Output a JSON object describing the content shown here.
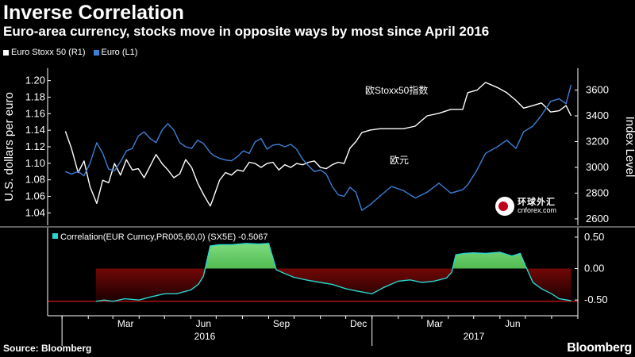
{
  "header": {
    "title": "Inverse Correlation",
    "subtitle": "Euro-area currency, stocks move in opposite ways by most since April 2016"
  },
  "footer": {
    "source": "Source: Bloomberg",
    "brand": "Bloomberg"
  },
  "watermark": {
    "cn": "环球外汇",
    "en": "cnforex.com"
  },
  "colors": {
    "euro": "#3c7fd6",
    "stoxx": "#ffffff",
    "corr_line": "#29d6ce",
    "positive_fill": "#23a623",
    "negative_fill": "#b10c0c",
    "corr_reference": "#d41a1a"
  },
  "chart_data": [
    {
      "type": "line",
      "legend": [
        "Euro Stoxx 50 (R1)",
        "Euro (L1)"
      ],
      "ylabel_left": "U.S. dollars per euro",
      "ylabel_right": "Index Level",
      "ylim_left": [
        1.025,
        1.215
      ],
      "ylim_right": [
        2550,
        3770
      ],
      "yticks_left": [
        "1.20",
        "1.18",
        "1.16",
        "1.14",
        "1.12",
        "1.10",
        "1.08",
        "1.06",
        "1.04"
      ],
      "yticks_right": [
        "3600",
        "3400",
        "3200",
        "3000",
        "2800",
        "2600"
      ],
      "xticks": [
        "Mar",
        "Jun",
        "Sep",
        "Dec",
        "Mar",
        "Jun"
      ],
      "year_labels": [
        "2016",
        "2017"
      ],
      "annotations": [
        "欧Stoxx50指数",
        "欧元"
      ],
      "series": [
        {
          "name": "Euro Stoxx 50 (R1)",
          "axis": "right",
          "x": [
            "2016-01-05",
            "2016-01-12",
            "2016-01-20",
            "2016-01-27",
            "2016-02-03",
            "2016-02-11",
            "2016-02-18",
            "2016-02-25",
            "2016-03-03",
            "2016-03-10",
            "2016-03-17",
            "2016-03-24",
            "2016-03-31",
            "2016-04-07",
            "2016-04-14",
            "2016-04-21",
            "2016-04-28",
            "2016-05-05",
            "2016-05-12",
            "2016-05-19",
            "2016-05-26",
            "2016-06-02",
            "2016-06-09",
            "2016-06-16",
            "2016-06-24",
            "2016-06-27",
            "2016-07-05",
            "2016-07-12",
            "2016-07-19",
            "2016-07-26",
            "2016-08-02",
            "2016-08-09",
            "2016-08-16",
            "2016-08-23",
            "2016-08-30",
            "2016-09-06",
            "2016-09-13",
            "2016-09-20",
            "2016-09-27",
            "2016-10-04",
            "2016-10-11",
            "2016-10-18",
            "2016-10-25",
            "2016-11-01",
            "2016-11-08",
            "2016-11-15",
            "2016-11-22",
            "2016-11-29",
            "2016-12-06",
            "2016-12-13",
            "2016-12-20",
            "2016-12-30",
            "2017-01-10",
            "2017-01-24",
            "2017-02-07",
            "2017-02-21",
            "2017-03-07",
            "2017-03-21",
            "2017-04-04",
            "2017-04-18",
            "2017-04-24",
            "2017-05-05",
            "2017-05-15",
            "2017-05-29",
            "2017-06-09",
            "2017-06-20",
            "2017-06-29",
            "2017-07-10",
            "2017-07-20",
            "2017-07-31",
            "2017-08-10",
            "2017-08-18",
            "2017-08-24"
          ],
          "values": [
            3280,
            3150,
            2960,
            3050,
            2850,
            2720,
            2900,
            2880,
            3030,
            2940,
            3060,
            2980,
            2990,
            2920,
            3010,
            3100,
            3030,
            2980,
            2920,
            2950,
            3060,
            3000,
            2880,
            2790,
            2700,
            2750,
            2900,
            2960,
            2940,
            2980,
            2970,
            3040,
            3030,
            3000,
            3030,
            3040,
            2980,
            3020,
            3000,
            3030,
            3020,
            3040,
            3050,
            3000,
            2990,
            3020,
            3040,
            3030,
            3150,
            3200,
            3270,
            3290,
            3300,
            3300,
            3300,
            3320,
            3400,
            3420,
            3450,
            3450,
            3580,
            3600,
            3660,
            3620,
            3580,
            3520,
            3460,
            3480,
            3500,
            3430,
            3440,
            3480,
            3400
          ]
        },
        {
          "name": "Euro (L1)",
          "axis": "left",
          "x": [
            "2016-01-05",
            "2016-01-12",
            "2016-01-20",
            "2016-01-27",
            "2016-02-03",
            "2016-02-11",
            "2016-02-18",
            "2016-02-25",
            "2016-03-03",
            "2016-03-10",
            "2016-03-17",
            "2016-03-24",
            "2016-03-31",
            "2016-04-07",
            "2016-04-14",
            "2016-04-21",
            "2016-04-28",
            "2016-05-05",
            "2016-05-12",
            "2016-05-19",
            "2016-05-26",
            "2016-06-02",
            "2016-06-09",
            "2016-06-16",
            "2016-06-24",
            "2016-06-27",
            "2016-07-05",
            "2016-07-12",
            "2016-07-19",
            "2016-07-26",
            "2016-08-02",
            "2016-08-09",
            "2016-08-16",
            "2016-08-23",
            "2016-08-30",
            "2016-09-06",
            "2016-09-13",
            "2016-09-20",
            "2016-09-27",
            "2016-10-04",
            "2016-10-11",
            "2016-10-18",
            "2016-10-25",
            "2016-11-01",
            "2016-11-08",
            "2016-11-15",
            "2016-11-22",
            "2016-11-29",
            "2016-12-06",
            "2016-12-13",
            "2016-12-20",
            "2016-12-30",
            "2017-01-10",
            "2017-01-24",
            "2017-02-07",
            "2017-02-21",
            "2017-03-07",
            "2017-03-21",
            "2017-04-04",
            "2017-04-18",
            "2017-04-24",
            "2017-05-05",
            "2017-05-15",
            "2017-05-29",
            "2017-06-09",
            "2017-06-20",
            "2017-06-29",
            "2017-07-10",
            "2017-07-20",
            "2017-07-31",
            "2017-08-10",
            "2017-08-18",
            "2017-08-24"
          ],
          "values": [
            1.09,
            1.087,
            1.09,
            1.085,
            1.1,
            1.125,
            1.112,
            1.093,
            1.091,
            1.102,
            1.115,
            1.118,
            1.133,
            1.138,
            1.13,
            1.125,
            1.14,
            1.148,
            1.14,
            1.125,
            1.12,
            1.118,
            1.128,
            1.124,
            1.113,
            1.11,
            1.106,
            1.104,
            1.103,
            1.108,
            1.115,
            1.112,
            1.126,
            1.13,
            1.117,
            1.122,
            1.123,
            1.12,
            1.123,
            1.117,
            1.105,
            1.097,
            1.09,
            1.092,
            1.087,
            1.072,
            1.062,
            1.06,
            1.071,
            1.065,
            1.043,
            1.05,
            1.06,
            1.072,
            1.067,
            1.058,
            1.065,
            1.076,
            1.064,
            1.068,
            1.074,
            1.092,
            1.112,
            1.12,
            1.128,
            1.118,
            1.138,
            1.145,
            1.158,
            1.175,
            1.178,
            1.172,
            1.195
          ]
        }
      ]
    },
    {
      "type": "area",
      "legend": [
        "Correlation(EUR Curncy,PR005,60,0) (SX5E) -0.5067"
      ],
      "ylim": [
        -0.75,
        0.65
      ],
      "yticks": [
        "0.50",
        "0.00",
        "-0.50"
      ],
      "reference_value": -0.52,
      "series": [
        {
          "name": "Correlation(EUR Curncy,PR005,60,0) (SX5E) -0.5067",
          "x": [
            "2016-02-10",
            "2016-02-20",
            "2016-03-01",
            "2016-03-15",
            "2016-04-01",
            "2016-04-15",
            "2016-05-01",
            "2016-05-15",
            "2016-06-01",
            "2016-06-10",
            "2016-06-16",
            "2016-06-24",
            "2016-07-05",
            "2016-07-20",
            "2016-08-05",
            "2016-08-20",
            "2016-09-01",
            "2016-09-10",
            "2016-09-20",
            "2016-10-01",
            "2016-10-15",
            "2016-11-01",
            "2016-11-15",
            "2016-12-01",
            "2016-12-15",
            "2017-01-01",
            "2017-01-15",
            "2017-02-01",
            "2017-02-15",
            "2017-03-01",
            "2017-03-15",
            "2017-03-30",
            "2017-04-05",
            "2017-04-10",
            "2017-04-20",
            "2017-05-01",
            "2017-05-15",
            "2017-06-01",
            "2017-06-15",
            "2017-06-25",
            "2017-07-01",
            "2017-07-10",
            "2017-07-20",
            "2017-08-01",
            "2017-08-10",
            "2017-08-24"
          ],
          "values": [
            -0.52,
            -0.5,
            -0.52,
            -0.48,
            -0.5,
            -0.45,
            -0.4,
            -0.4,
            -0.34,
            -0.25,
            -0.12,
            0.36,
            0.38,
            0.38,
            0.4,
            0.39,
            0.4,
            -0.02,
            -0.08,
            -0.14,
            -0.18,
            -0.22,
            -0.25,
            -0.32,
            -0.36,
            -0.4,
            -0.3,
            -0.2,
            -0.18,
            -0.22,
            -0.2,
            -0.15,
            -0.06,
            0.22,
            0.24,
            0.25,
            0.24,
            0.26,
            0.2,
            0.24,
            0.05,
            -0.22,
            -0.32,
            -0.4,
            -0.48,
            -0.51
          ]
        }
      ]
    }
  ]
}
